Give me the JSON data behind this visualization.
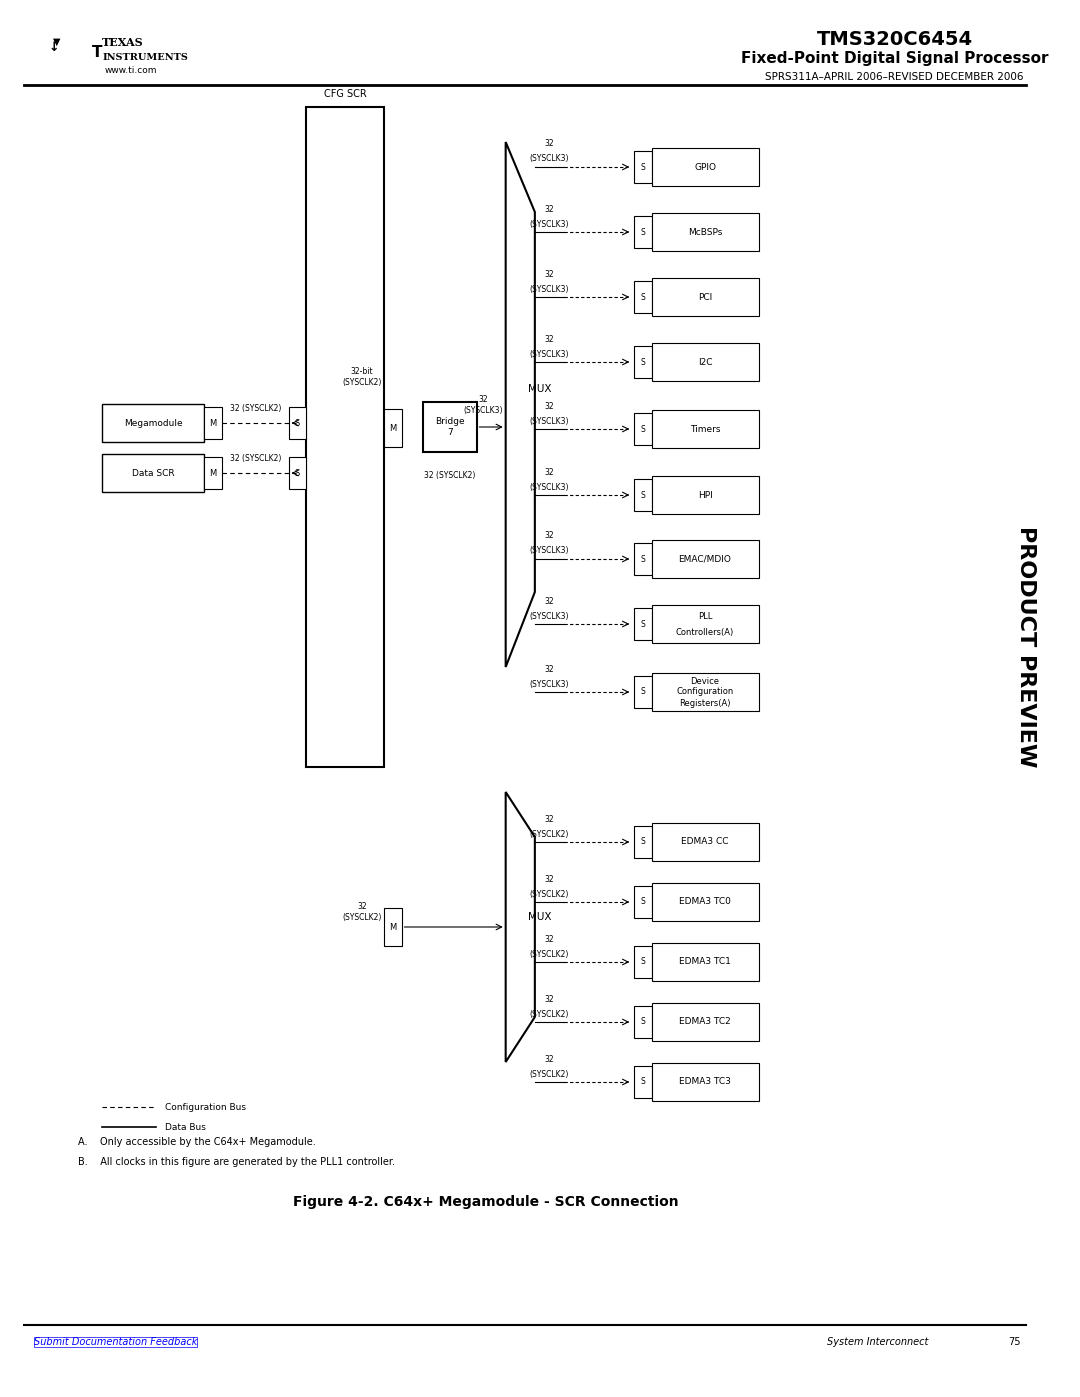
{
  "title": "TMS320C6454",
  "subtitle": "Fixed-Point Digital Signal Processor",
  "subtitle2": "SPRS311A–APRIL 2006–REVISED DECEMBER 2006",
  "figure_title": "Figure 4-2. C64x+ Megamodule - SCR Connection",
  "footnote_a": "A.    Only accessible by the C64x+ Megamodule.",
  "footnote_b": "B.    All clocks in this figure are generated by the PLL1 controller.",
  "footer_left": "Submit Documentation Feedback",
  "footer_right": "System Interconnect",
  "footer_page": "75",
  "bg_color": "#ffffff",
  "box_color": "#000000",
  "text_color": "#000000",
  "right_modules_top": [
    "GPIO",
    "McBSPs",
    "PCI",
    "I2C",
    "Timers",
    "HPI",
    "EMAC/MDIO",
    "PLL\nControllers(A)",
    "Device\nConfiguration\nRegisters(A)"
  ],
  "right_modules_bottom": [
    "EDMA3 CC",
    "EDMA3 TC0",
    "EDMA3 TC1",
    "EDMA3 TC2",
    "EDMA3 TC3"
  ],
  "right_clk_top": "32\n(SYSCLK3)",
  "right_clk_bottom": "32\n(SYSCLK2)",
  "cfg_scr_label": "CFG SCR",
  "bridge_label": "Bridge\n7",
  "mux_label": "MUX",
  "megamodule_label": "Megamodule",
  "data_scr_label": "Data SCR",
  "m_label": "M",
  "s_label": "S",
  "bus_32bit_sysclk2": "32-bit\n(SYSCLK2)",
  "bus_32_sysclk3": "32\n(SYSCLK3)",
  "bus_32_sysclk2_bridge": "32 (SYSCLK2)",
  "bus_32_sysclk2_bottom": "32\n(SYSCLK2)",
  "legend_config": "Configuration Bus",
  "legend_data": "Data Bus"
}
